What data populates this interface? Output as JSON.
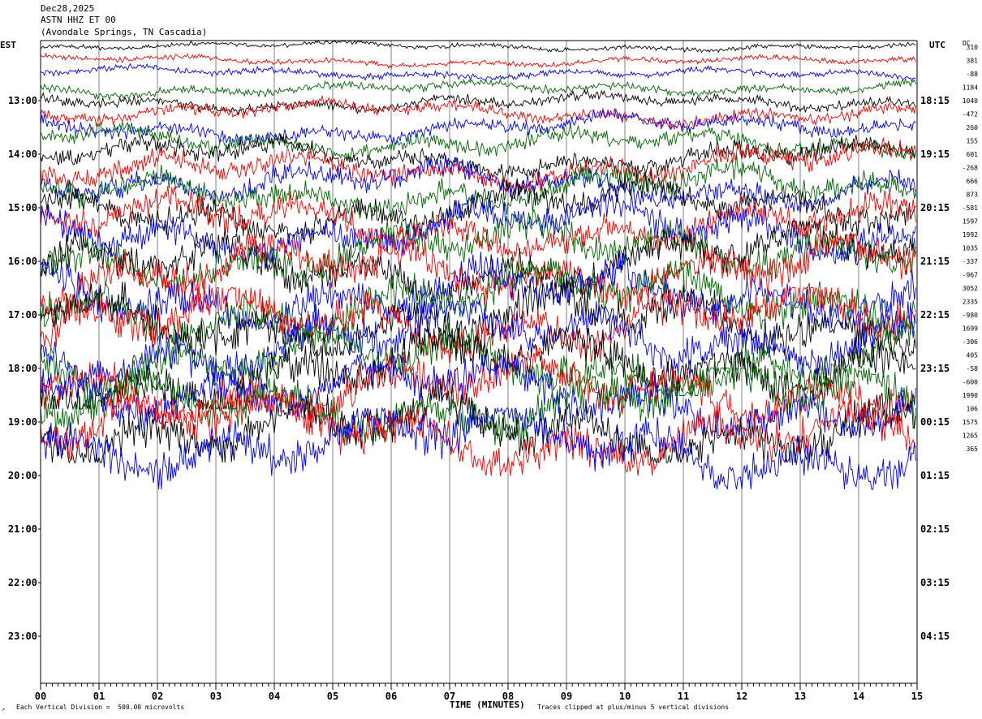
{
  "header": {
    "date": "Dec28,2025",
    "station": "ASTN HHZ ET 00",
    "location": "(Avondale Springs, TN Cascadia)"
  },
  "left_zone_label": "EST",
  "right_zone_label": "UTC",
  "dc_label": "DC",
  "footer": {
    "scale_note": "Each Vertical Division =  500.00 microvolts",
    "xlabel": "TIME (MINUTES)",
    "clip_note": "Traces clipped at plus/minus 5 vertical divisions",
    "mark": "↗"
  },
  "colors": {
    "trace_cycle": [
      "#000000",
      "#ff0000",
      "#0000ff",
      "#006400"
    ],
    "grid": "#808080"
  },
  "chart_data": {
    "type": "line",
    "title": "ASTN HHZ ET 00",
    "xlabel": "TIME (MINUTES)",
    "xlim": [
      0,
      15
    ],
    "x_ticks": [
      "00",
      "01",
      "02",
      "03",
      "04",
      "05",
      "06",
      "07",
      "08",
      "09",
      "10",
      "11",
      "12",
      "13",
      "14",
      "15"
    ],
    "left_hour_labels": [
      "13:00",
      "14:00",
      "15:00",
      "16:00",
      "17:00",
      "18:00",
      "19:00",
      "20:00",
      "21:00",
      "22:00",
      "23:00"
    ],
    "right_hour_labels": [
      "18:15",
      "19:15",
      "20:15",
      "21:15",
      "22:15",
      "23:15",
      "00:15",
      "01:15",
      "02:15",
      "03:15",
      "04:15"
    ],
    "dc_offsets": [
      310,
      381,
      -88,
      1184,
      1040,
      -472,
      260,
      155,
      601,
      -268,
      666,
      873,
      -581,
      1597,
      1992,
      1035,
      -337,
      -967,
      3052,
      2335,
      -980,
      1699,
      -306,
      405,
      -58,
      -600,
      1990,
      106,
      1575,
      1265,
      365
    ],
    "traces_per_hour": 4,
    "trace_count": 31,
    "units_per_division": 500.0,
    "clip_divisions": 5
  }
}
